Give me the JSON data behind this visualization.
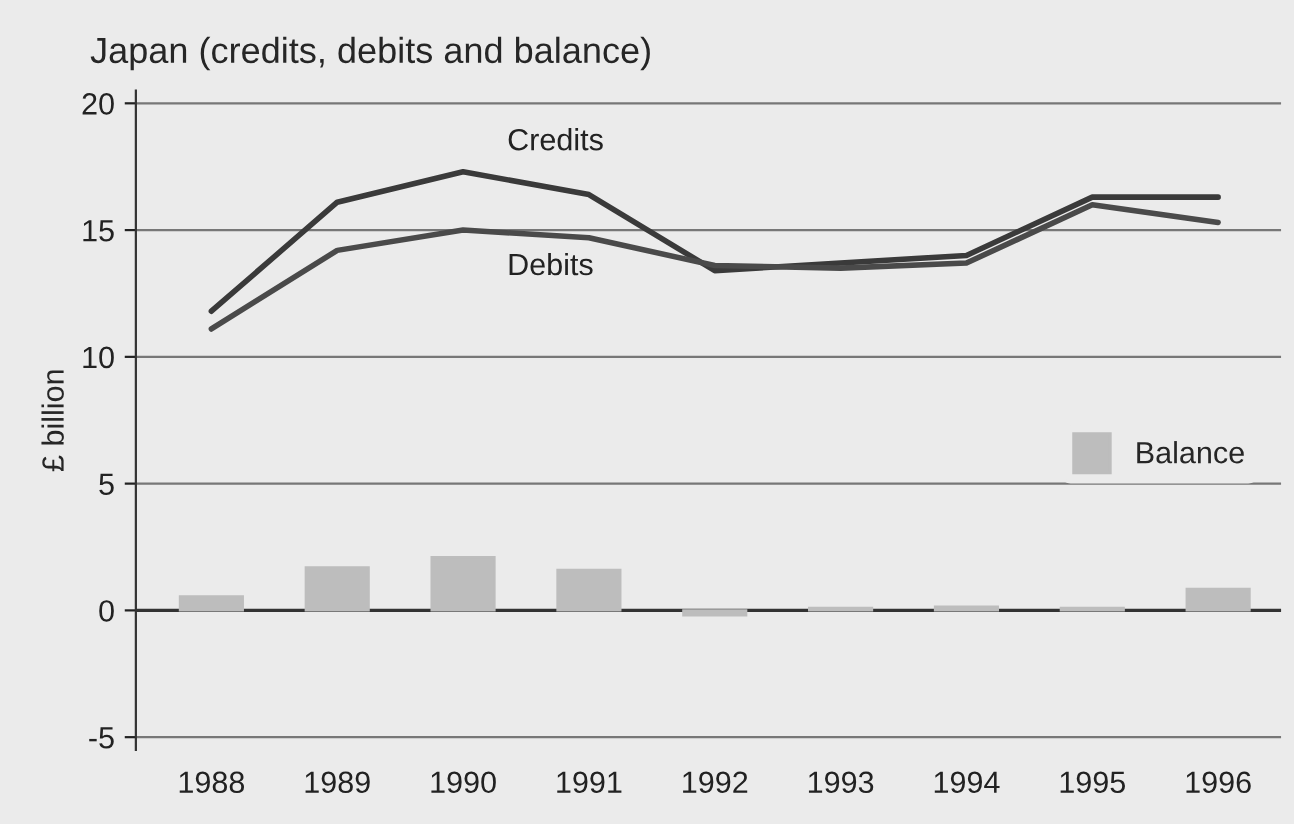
{
  "chart_data": {
    "type": "line",
    "title": "Japan (credits, debits and balance)",
    "ylabel": "£ billion",
    "categories": [
      "1988",
      "1989",
      "1990",
      "1991",
      "1992",
      "1993",
      "1994",
      "1995",
      "1996"
    ],
    "series": [
      {
        "name": "Credits",
        "color": "#3a3a3a",
        "values": [
          11.8,
          16.1,
          17.3,
          16.4,
          13.4,
          13.7,
          14.0,
          16.3,
          16.3
        ]
      },
      {
        "name": "Debits",
        "color": "#4a4a4a",
        "values": [
          11.1,
          14.2,
          15.0,
          14.7,
          13.6,
          13.5,
          13.7,
          16.0,
          15.3
        ]
      },
      {
        "name": "Balance",
        "type": "bar",
        "color": "#bdbdbd",
        "values": [
          0.55,
          1.7,
          2.1,
          1.6,
          -0.2,
          0.1,
          0.15,
          0.1,
          0.85
        ]
      }
    ],
    "ylim": [
      -5.5,
      20.5
    ],
    "yticks": [
      -5,
      0,
      5,
      10,
      15,
      20
    ],
    "grid": "y",
    "legend": "right"
  }
}
